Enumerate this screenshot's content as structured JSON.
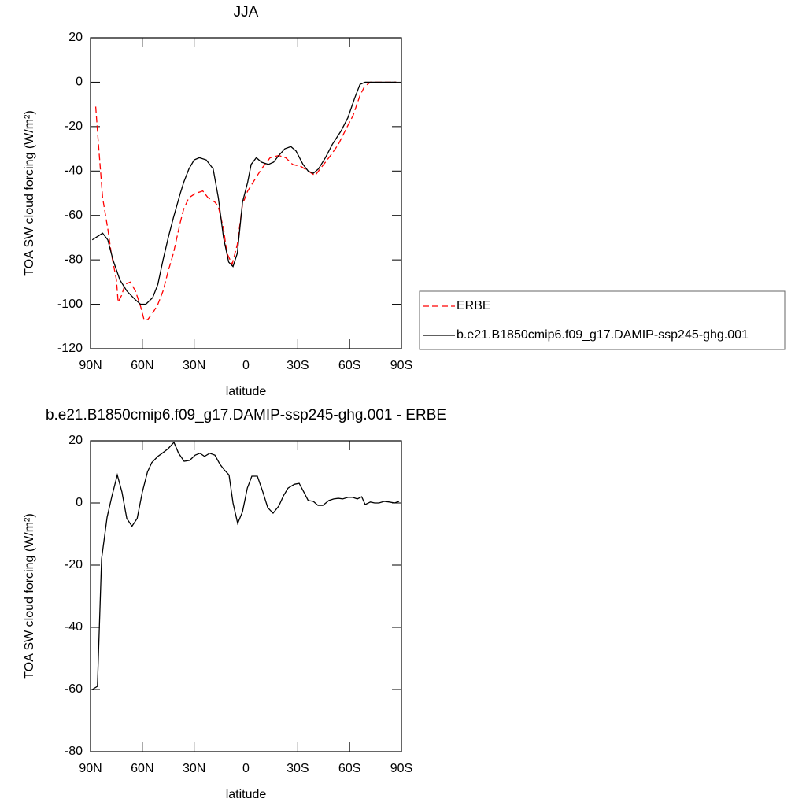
{
  "chart_data": [
    {
      "type": "line",
      "title": "JJA",
      "xlabel": "latitude",
      "ylabel": "TOA SW cloud forcing (W/m²)",
      "xlim": [
        90,
        -90
      ],
      "xticks": [
        {
          "value": 90,
          "label": "90N"
        },
        {
          "value": 60,
          "label": "60N"
        },
        {
          "value": 30,
          "label": "30N"
        },
        0,
        {
          "value": -30,
          "label": "30S"
        },
        {
          "value": -60,
          "label": "60S"
        },
        {
          "value": -90,
          "label": "90S"
        }
      ],
      "ylim": [
        20,
        -120
      ],
      "yticks": [
        20,
        0,
        -20,
        -40,
        -60,
        -80,
        -100,
        -120
      ],
      "legend": "right",
      "series": [
        {
          "name": "ERBE",
          "color": "#ff0000",
          "dashed": true,
          "x": [
            87,
            85.5,
            83,
            80,
            78,
            75,
            74,
            72,
            70,
            67,
            64,
            61,
            59,
            57,
            54,
            51,
            48,
            45,
            42,
            38,
            36,
            33,
            29,
            25,
            22,
            18,
            16,
            13,
            11,
            8,
            5,
            2,
            -1,
            -5,
            -9,
            -14,
            -19,
            -23,
            -27,
            -32,
            -36,
            -40,
            -44,
            -49,
            -53.5,
            -58,
            -62,
            -66,
            -68.6,
            -72,
            -78,
            -87
          ],
          "values": [
            -11,
            -27,
            -52,
            -66,
            -77,
            -89,
            -99,
            -96,
            -91,
            -90,
            -94,
            -101,
            -107,
            -107,
            -104,
            -100,
            -94,
            -85,
            -77,
            -63,
            -57,
            -52,
            -50,
            -49,
            -52,
            -54,
            -56,
            -66,
            -77,
            -82,
            -73,
            -55,
            -49,
            -44,
            -39,
            -34,
            -33,
            -34,
            -37,
            -38,
            -40,
            -42,
            -38,
            -33,
            -28,
            -21,
            -15,
            -6,
            -2,
            0,
            0,
            0
          ]
        },
        {
          "name": "b.e21.B1850cmip6.f09_g17.DAMIP-ssp245-ghg.001",
          "color": "#000000",
          "dashed": false,
          "x": [
            89,
            87,
            83,
            80,
            77,
            73,
            69,
            64,
            61,
            58,
            54,
            51,
            48,
            45,
            42,
            38,
            36,
            33,
            30,
            27,
            23,
            19,
            16,
            13,
            10,
            7.5,
            5,
            2,
            -1,
            -3,
            -6,
            -9,
            -13,
            -16,
            -19,
            -22.5,
            -26,
            -29,
            -33,
            -36,
            -39,
            -42,
            -46,
            -50,
            -55,
            -59,
            -63,
            -66,
            -69,
            -74,
            -81,
            -87
          ],
          "values": [
            -71,
            -70,
            -68,
            -71,
            -80,
            -89,
            -94,
            -98,
            -100,
            -100,
            -97,
            -91,
            -80,
            -70,
            -61,
            -50,
            -45,
            -39,
            -35,
            -34,
            -35,
            -39,
            -52,
            -70,
            -81,
            -83,
            -77,
            -54,
            -45,
            -37,
            -34,
            -36,
            -37,
            -36,
            -33,
            -30,
            -29,
            -31,
            -37,
            -40,
            -41,
            -39,
            -34,
            -28,
            -22,
            -16,
            -7,
            -1,
            0,
            0,
            0,
            0
          ]
        }
      ]
    },
    {
      "type": "line",
      "title": "b.e21.B1850cmip6.f09_g17.DAMIP-ssp245-ghg.001 - ERBE",
      "xlabel": "latitude",
      "ylabel": "TOA SW cloud forcing (W/m²)",
      "xlim": [
        90,
        -90
      ],
      "xticks": [
        {
          "value": 90,
          "label": "90N"
        },
        {
          "value": 60,
          "label": "60N"
        },
        {
          "value": 30,
          "label": "30N"
        },
        0,
        {
          "value": -30,
          "label": "30S"
        },
        {
          "value": -60,
          "label": "60S"
        },
        {
          "value": -90,
          "label": "90S"
        }
      ],
      "ylim": [
        20,
        -80
      ],
      "yticks": [
        20,
        0,
        -20,
        -40,
        -60,
        -80
      ],
      "series": [
        {
          "color": "#000000",
          "dashed": false,
          "x": [
            89,
            86,
            83.6,
            80.4,
            77.7,
            74.5,
            71.8,
            69,
            66,
            63,
            60,
            57,
            54.5,
            51,
            48.5,
            45,
            41.7,
            39,
            35.8,
            32.6,
            29.4,
            26.6,
            24,
            21,
            18,
            15,
            12.5,
            9.8,
            7.5,
            4.8,
            2,
            -0.8,
            -3.4,
            -6.6,
            -9.8,
            -12.6,
            -15.7,
            -19,
            -21.7,
            -24.4,
            -28,
            -30.8,
            -33.5,
            -36,
            -39,
            -41.7,
            -44.5,
            -48,
            -50.8,
            -53.5,
            -56,
            -59,
            -61.8,
            -64.5,
            -67,
            -69,
            -72,
            -74.5,
            -77,
            -80,
            -83,
            -86,
            -88.6
          ],
          "values": [
            -60,
            -59,
            -18,
            -4.6,
            2,
            9,
            3.5,
            -5,
            -7.5,
            -5,
            3.5,
            10,
            13,
            15,
            16,
            17.5,
            19.5,
            16,
            13.4,
            13.7,
            15.4,
            16,
            15,
            16,
            15.4,
            12.4,
            10.6,
            9,
            0,
            -6.6,
            -2.8,
            4.8,
            8.6,
            8.6,
            3.5,
            -1.5,
            -3.3,
            -1,
            2.3,
            4.8,
            6,
            6.3,
            3.5,
            0.8,
            0.5,
            -0.8,
            -0.8,
            0.8,
            1.3,
            1.5,
            1.3,
            1.8,
            1.8,
            1.3,
            2,
            -0.5,
            0.3,
            0,
            0,
            0.5,
            0.3,
            0,
            0.5
          ]
        }
      ]
    }
  ]
}
